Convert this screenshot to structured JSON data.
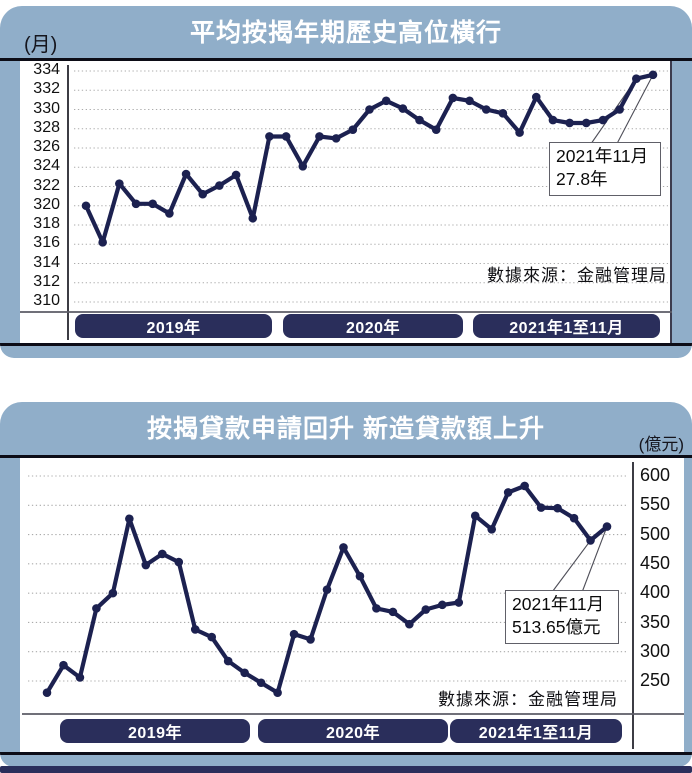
{
  "colors": {
    "header_blue": "#90AEC9",
    "line_navy": "#1C2150",
    "pill_navy": "#2A2E5B",
    "bottom_bar_navy": "#2A2E5B",
    "grid_gray": "#ABABAB"
  },
  "chart_data": [
    {
      "type": "line",
      "title": "平均按揭年期歷史高位橫行",
      "unit_label": "(月)",
      "y_axis_side": "left",
      "grid": "horizontal-dotted",
      "legend": "none",
      "source": "數據來源：金融管理局",
      "x_group_labels": [
        "2019年",
        "2020年",
        "2021年1至11月"
      ],
      "points_per_group": [
        12,
        12,
        11
      ],
      "yticks": [
        334,
        332,
        330,
        328,
        326,
        324,
        322,
        320,
        318,
        316,
        314,
        312,
        310
      ],
      "ylim": [
        310,
        334
      ],
      "values": [
        320.0,
        316.2,
        322.3,
        320.2,
        320.2,
        319.2,
        323.3,
        321.2,
        322.1,
        323.2,
        318.7,
        327.2,
        327.2,
        324.1,
        327.2,
        327.0,
        327.9,
        330.0,
        330.9,
        330.1,
        328.9,
        327.9,
        331.2,
        330.9,
        330.0,
        329.6,
        327.6,
        331.3,
        328.9,
        328.6,
        328.6,
        328.9,
        330.0,
        333.2,
        333.6
      ],
      "annotation": {
        "lines": [
          "2021年11月",
          "27.8年"
        ],
        "targets": "last-two-points"
      }
    },
    {
      "type": "line",
      "title": "按揭貸款申請回升 新造貸款額上升",
      "unit_label": "(億元)",
      "y_axis_side": "right",
      "grid": "horizontal-dotted",
      "legend": "none",
      "source": "數據來源：金融管理局",
      "x_group_labels": [
        "2019年",
        "2020年",
        "2021年1至11月"
      ],
      "points_per_group": [
        12,
        12,
        11
      ],
      "yticks": [
        600,
        550,
        500,
        450,
        400,
        350,
        300,
        250
      ],
      "ylim": [
        250,
        600
      ],
      "values": [
        230,
        277,
        256,
        374,
        400,
        527,
        448,
        467,
        453,
        338,
        325,
        284,
        264,
        247,
        230,
        330,
        321,
        406,
        478,
        429,
        374,
        368,
        347,
        372,
        380,
        384,
        532,
        509,
        572,
        583,
        546,
        545,
        528,
        490,
        513.65
      ],
      "annotation": {
        "lines": [
          "2021年11月",
          "513.65億元"
        ],
        "targets": "last-two-points"
      }
    }
  ]
}
